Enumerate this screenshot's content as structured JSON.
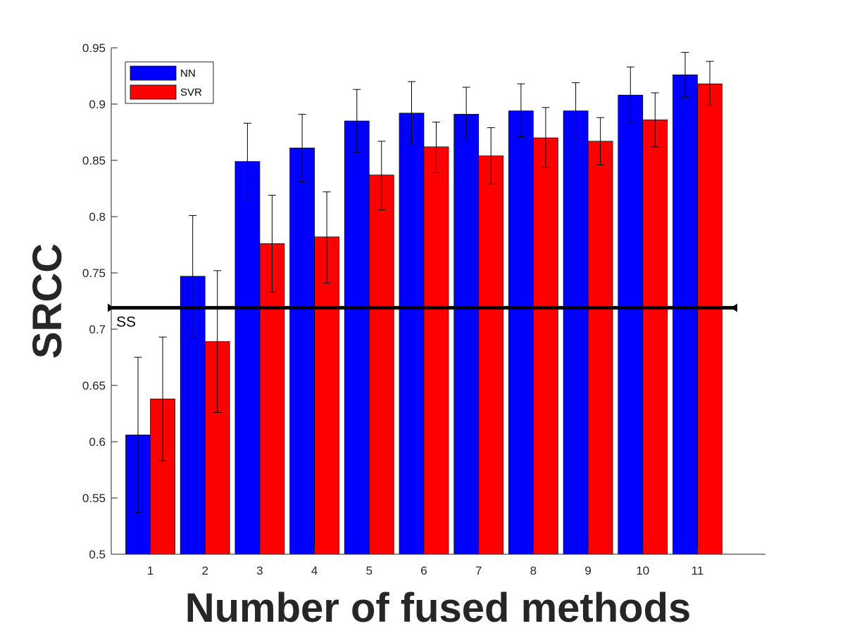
{
  "chart_data": {
    "type": "bar",
    "xlabel": "Number of fused methods",
    "ylabel": "SRCC",
    "ylim": [
      0.5,
      0.95
    ],
    "yticks": [
      0.5,
      0.55,
      0.6,
      0.65,
      0.7,
      0.75,
      0.8,
      0.85,
      0.9,
      0.95
    ],
    "ytick_labels": [
      "0.5",
      "0.55",
      "0.6",
      "0.65",
      "0.7",
      "0.75",
      "0.8",
      "0.85",
      "0.9",
      "0.95"
    ],
    "categories": [
      "1",
      "2",
      "3",
      "4",
      "5",
      "6",
      "7",
      "8",
      "9",
      "10",
      "11"
    ],
    "series": [
      {
        "name": "NN",
        "color": "#0000ff",
        "values": [
          0.606,
          0.747,
          0.849,
          0.861,
          0.885,
          0.892,
          0.891,
          0.894,
          0.894,
          0.908,
          0.926
        ],
        "err_low": [
          0.537,
          0.693,
          0.814,
          0.831,
          0.857,
          0.864,
          0.869,
          0.871,
          0.869,
          0.883,
          0.906
        ],
        "err_high": [
          0.675,
          0.801,
          0.883,
          0.891,
          0.913,
          0.92,
          0.915,
          0.918,
          0.919,
          0.933,
          0.946
        ]
      },
      {
        "name": "SVR",
        "color": "#ff0000",
        "values": [
          0.638,
          0.689,
          0.776,
          0.782,
          0.837,
          0.862,
          0.854,
          0.87,
          0.867,
          0.886,
          0.918
        ],
        "err_low": [
          0.583,
          0.626,
          0.733,
          0.741,
          0.806,
          0.839,
          0.829,
          0.844,
          0.846,
          0.862,
          0.899
        ],
        "err_high": [
          0.693,
          0.752,
          0.819,
          0.822,
          0.867,
          0.884,
          0.879,
          0.897,
          0.888,
          0.91,
          0.938
        ]
      }
    ],
    "reference_line": {
      "label": "SS",
      "value": 0.719,
      "color": "#000000"
    },
    "legend": {
      "position": "top-left",
      "entries": [
        "NN",
        "SVR"
      ]
    },
    "grid": false
  }
}
